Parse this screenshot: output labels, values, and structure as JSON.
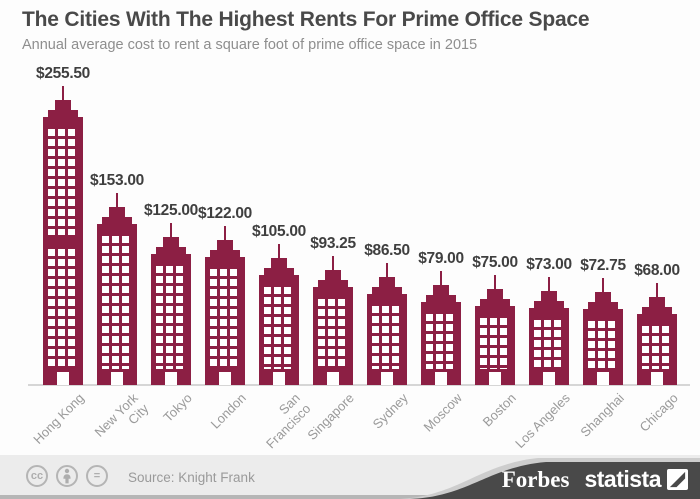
{
  "header": {
    "title": "The Cities With The Highest Rents For Prime Office Space",
    "subtitle": "Annual average cost to rent a square foot of prime office space in 2015"
  },
  "chart_data": {
    "type": "bar",
    "style": "pictorial-skyscrapers",
    "title": "The Cities With The Highest Rents For Prime Office Space",
    "subtitle": "Annual average cost to rent a square foot of prime office space in 2015",
    "unit": "USD per square foot per year",
    "categories": [
      "Hong Kong",
      "New York City",
      "Tokyo",
      "London",
      "San Francisco",
      "Singapore",
      "Sydney",
      "Moscow",
      "Boston",
      "Los Angeles",
      "Shanghai",
      "Chicago"
    ],
    "tick_labels": [
      "Hong Kong",
      "New York\nCity",
      "Tokyo",
      "London",
      "San\nFrancisco",
      "Singapore",
      "Sydney",
      "Moscow",
      "Boston",
      "Los Angeles",
      "Shanghai",
      "Chicago"
    ],
    "values": [
      255.5,
      153.0,
      125.0,
      122.0,
      105.0,
      93.25,
      86.5,
      79.0,
      75.0,
      73.0,
      72.75,
      68.0
    ],
    "value_labels": [
      "$255.50",
      "$153.00",
      "$125.00",
      "$122.00",
      "$105.00",
      "$93.25",
      "$86.50",
      "$79.00",
      "$75.00",
      "$73.00",
      "$72.75",
      "$68.00"
    ],
    "bar_color": "#8c1f44",
    "orientation": "vertical",
    "legend": false,
    "gridlines": false,
    "source": "Knight Frank"
  },
  "footer": {
    "source_label": "Source: Knight Frank",
    "license_icons": [
      "cc",
      "attribution",
      "no-derivatives"
    ],
    "cc_glyph": "cc",
    "nd_glyph": "=",
    "brand_forbes": "Forbes",
    "brand_statista": "statista"
  },
  "colors": {
    "building": "#8c1f44",
    "title_text": "#494949",
    "subtitle_text": "#8e8e8e",
    "value_text": "#3f3f3f",
    "city_text": "#9a9a9a",
    "baseline": "#d6d6d6",
    "footer_bg": "#ececec",
    "banner_bg": "#494949",
    "banner_edge": "#cdcdcd"
  }
}
